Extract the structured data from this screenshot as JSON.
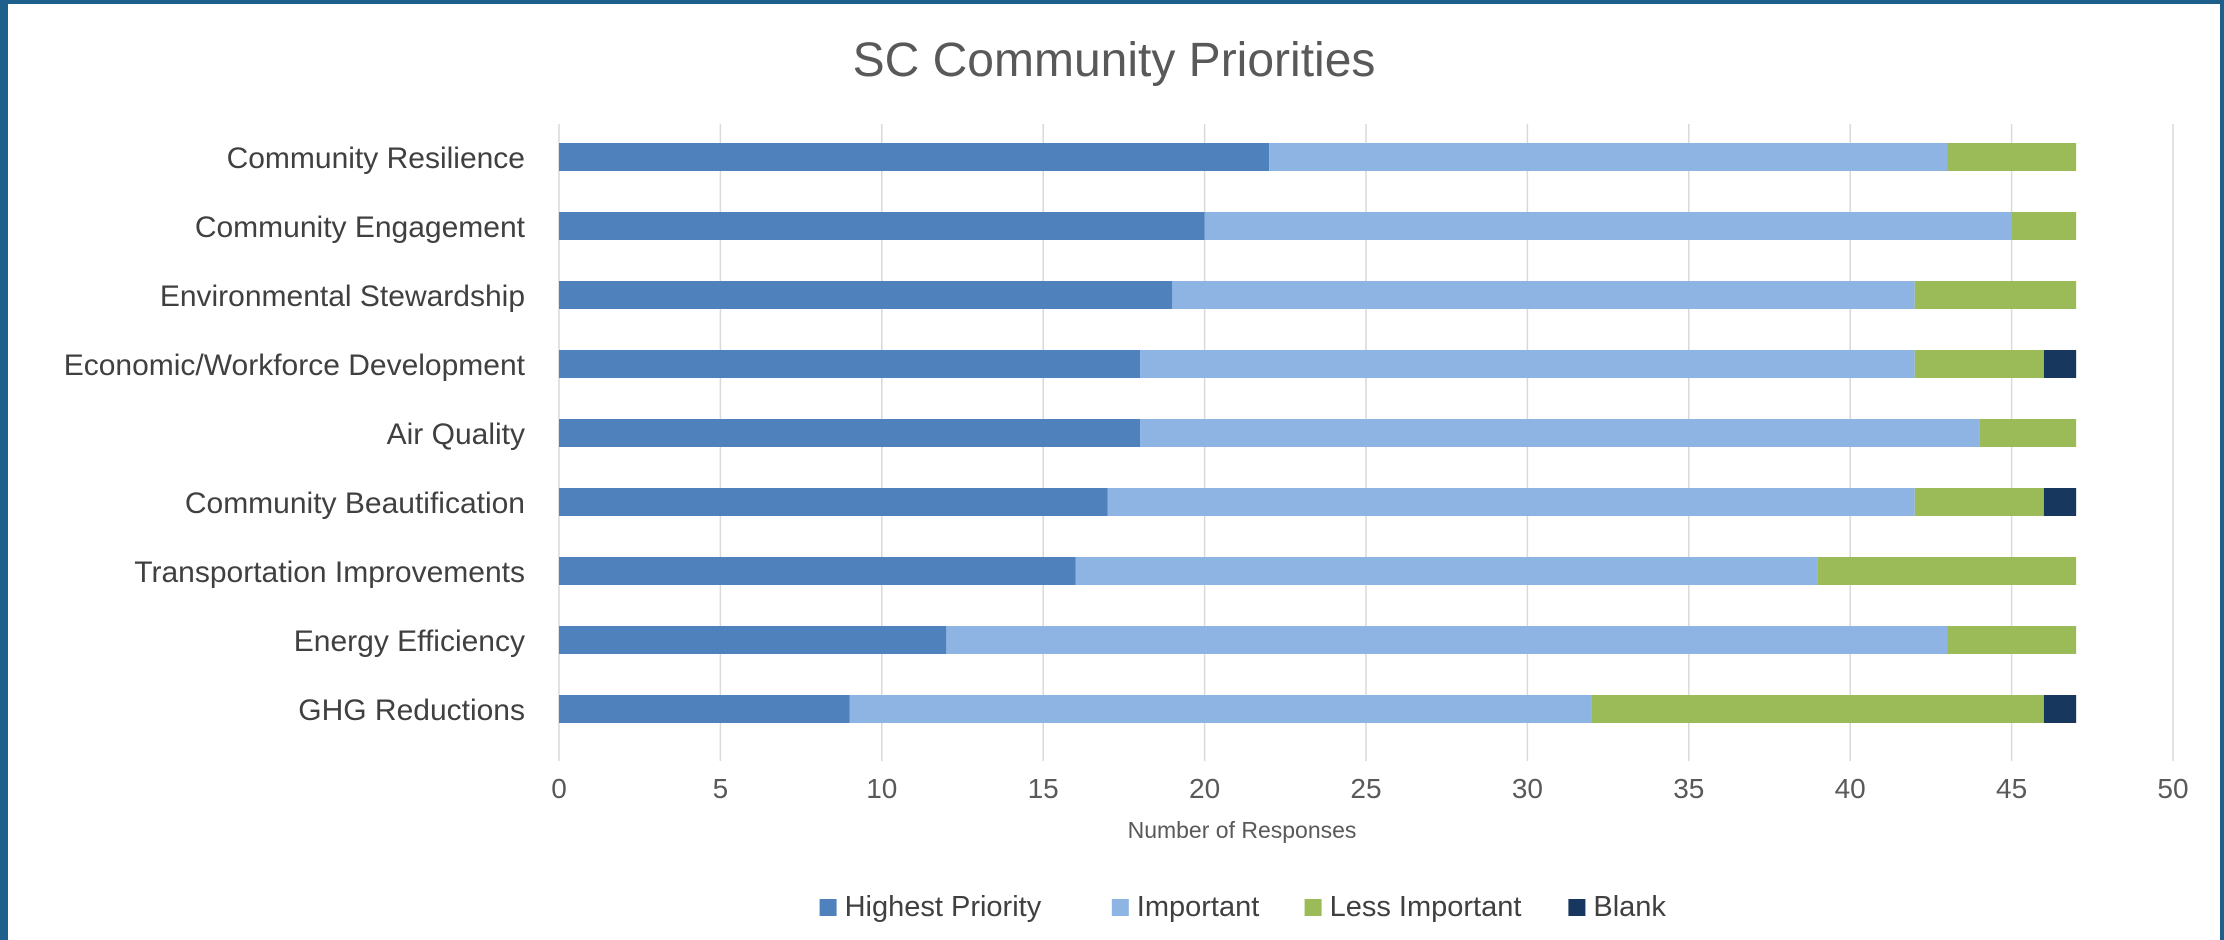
{
  "chart_data": {
    "type": "bar",
    "orientation": "horizontal",
    "stacked": true,
    "title": "SC Community Priorities",
    "xlabel": "Number of Responses",
    "ylabel": "",
    "xlim": [
      0,
      50
    ],
    "x_ticks": [
      0,
      5,
      10,
      15,
      20,
      25,
      30,
      35,
      40,
      45,
      50
    ],
    "grid": true,
    "legend": "bottom",
    "categories": [
      "Community Resilience",
      "Community Engagement",
      "Environmental Stewardship",
      "Economic/Workforce Development",
      "Air Quality",
      "Community Beautification",
      "Transportation Improvements",
      "Energy Efficiency",
      "GHG Reductions"
    ],
    "series": [
      {
        "name": "Highest Priority",
        "color": "#4f81bd",
        "values": [
          22,
          20,
          19,
          18,
          18,
          17,
          16,
          12,
          9
        ]
      },
      {
        "name": "Important",
        "color": "#8eb4e3",
        "values": [
          21,
          25,
          23,
          24,
          26,
          25,
          23,
          31,
          23
        ]
      },
      {
        "name": "Less Important",
        "color": "#9bbb59",
        "values": [
          4,
          2,
          5,
          4,
          3,
          4,
          8,
          4,
          14
        ]
      },
      {
        "name": "Blank",
        "color": "#17375e",
        "values": [
          0,
          0,
          0,
          1,
          0,
          1,
          0,
          0,
          1
        ]
      }
    ]
  }
}
